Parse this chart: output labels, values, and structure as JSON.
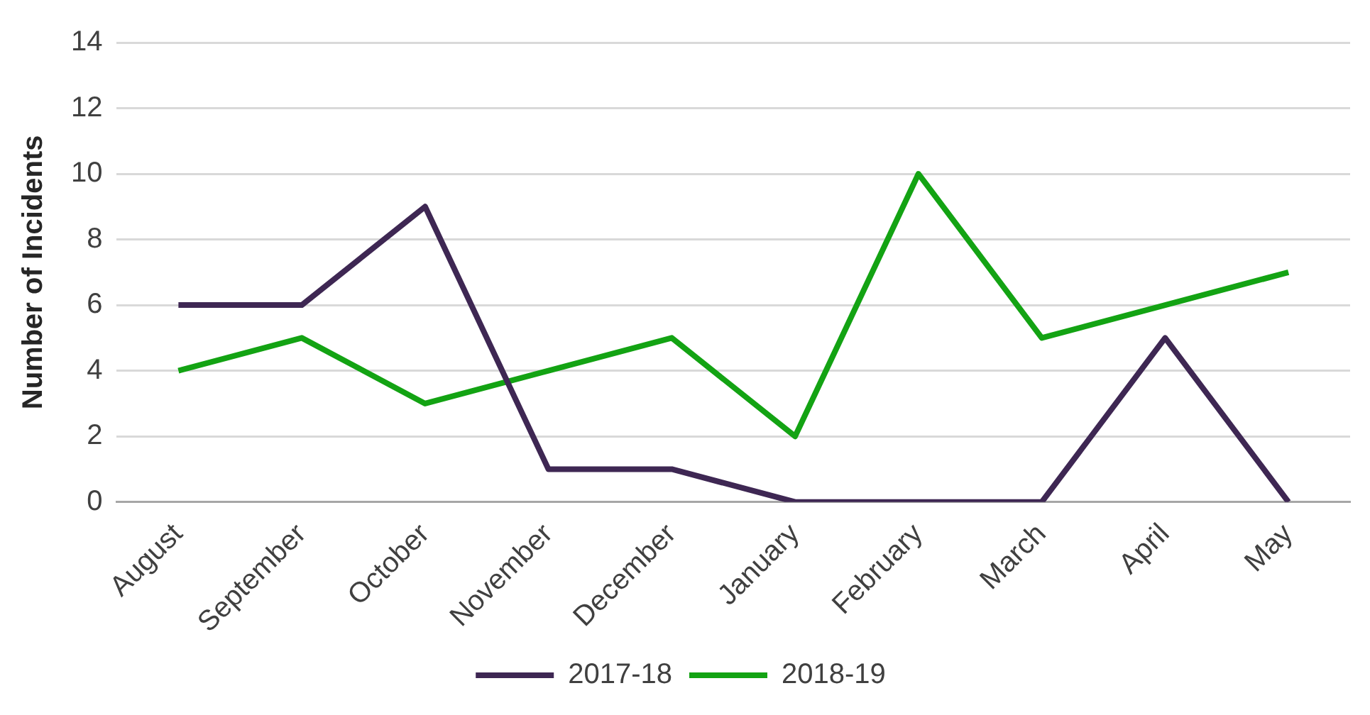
{
  "chart_data": {
    "type": "line",
    "ylabel": "Number of Incidents",
    "categories": [
      "August",
      "September",
      "October",
      "November",
      "December",
      "January",
      "February",
      "March",
      "April",
      "May"
    ],
    "series": [
      {
        "name": "2017-18",
        "color": "#3e2753",
        "values": [
          6,
          6,
          9,
          1,
          1,
          0,
          0,
          0,
          5,
          0
        ]
      },
      {
        "name": "2018-19",
        "color": "#13a313",
        "values": [
          4,
          5,
          3,
          4,
          5,
          2,
          10,
          5,
          6,
          7
        ]
      }
    ],
    "ylim": [
      0,
      14
    ],
    "yticks": [
      0,
      2,
      4,
      6,
      8,
      10,
      12,
      14
    ],
    "grid": "y",
    "legend": "bottom",
    "marker": "none",
    "line_style": "solid"
  }
}
